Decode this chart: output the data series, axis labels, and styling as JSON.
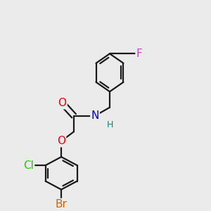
{
  "bg_color": "#ebebeb",
  "bond_color": "#1a1a1a",
  "bond_width": 1.6,
  "dbo": 0.013,
  "figsize": [
    3.0,
    3.0
  ],
  "dpi": 100,
  "colors": {
    "O": "#ff0000",
    "N": "#0000cc",
    "H": "#008888",
    "Cl": "#22cc00",
    "Br": "#cc6600",
    "F": "#cc44cc",
    "C": "#1a1a1a"
  }
}
